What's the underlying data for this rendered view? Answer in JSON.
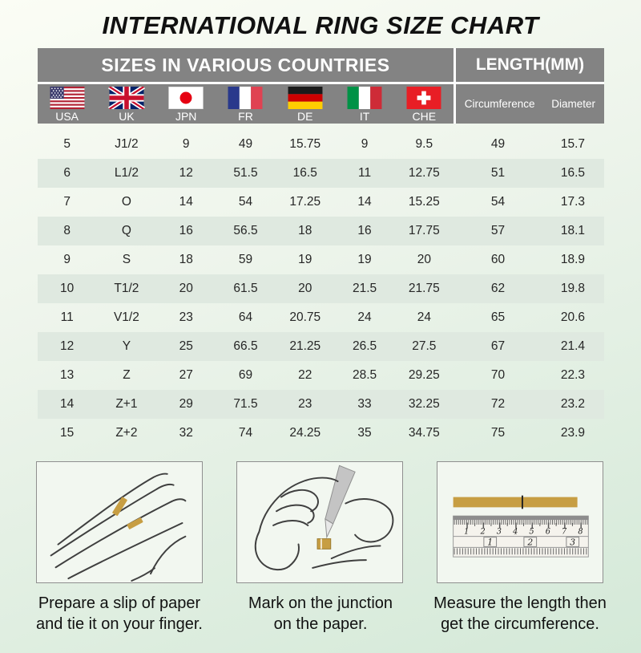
{
  "page_title": "INTERNATIONAL RING SIZE CHART",
  "table": {
    "left_header": "SIZES IN VARIOUS COUNTRIES",
    "right_header": "LENGTH(MM)",
    "countries": [
      {
        "code": "USA",
        "flag": "usa-flag-icon"
      },
      {
        "code": "UK",
        "flag": "uk-flag-icon"
      },
      {
        "code": "JPN",
        "flag": "japan-flag-icon"
      },
      {
        "code": "FR",
        "flag": "france-flag-icon"
      },
      {
        "code": "DE",
        "flag": "germany-flag-icon"
      },
      {
        "code": "IT",
        "flag": "italy-flag-icon"
      },
      {
        "code": "CHE",
        "flag": "switzerland-flag-icon"
      }
    ],
    "length_columns": [
      "Circumference",
      "Diameter"
    ]
  },
  "chart_data": {
    "type": "table",
    "title": "INTERNATIONAL RING SIZE CHART",
    "columns": [
      "USA",
      "UK",
      "JPN",
      "FR",
      "DE",
      "IT",
      "CHE",
      "Circumference",
      "Diameter"
    ],
    "rows": [
      [
        "5",
        "J1/2",
        "9",
        "49",
        "15.75",
        "9",
        "9.5",
        "49",
        "15.7"
      ],
      [
        "6",
        "L1/2",
        "12",
        "51.5",
        "16.5",
        "11",
        "12.75",
        "51",
        "16.5"
      ],
      [
        "7",
        "O",
        "14",
        "54",
        "17.25",
        "14",
        "15.25",
        "54",
        "17.3"
      ],
      [
        "8",
        "Q",
        "16",
        "56.5",
        "18",
        "16",
        "17.75",
        "57",
        "18.1"
      ],
      [
        "9",
        "S",
        "18",
        "59",
        "19",
        "19",
        "20",
        "60",
        "18.9"
      ],
      [
        "10",
        "T1/2",
        "20",
        "61.5",
        "20",
        "21.5",
        "21.75",
        "62",
        "19.8"
      ],
      [
        "11",
        "V1/2",
        "23",
        "64",
        "20.75",
        "24",
        "24",
        "65",
        "20.6"
      ],
      [
        "12",
        "Y",
        "25",
        "66.5",
        "21.25",
        "26.5",
        "27.5",
        "67",
        "21.4"
      ],
      [
        "13",
        "Z",
        "27",
        "69",
        "22",
        "28.5",
        "29.25",
        "70",
        "22.3"
      ],
      [
        "14",
        "Z+1",
        "29",
        "71.5",
        "23",
        "33",
        "32.25",
        "72",
        "23.2"
      ],
      [
        "15",
        "Z+2",
        "32",
        "74",
        "24.25",
        "35",
        "34.75",
        "75",
        "23.9"
      ]
    ]
  },
  "steps": [
    {
      "icon": "hand-with-paper-strip-icon",
      "line1": "Prepare a slip of paper",
      "line2": "and tie it on your finger."
    },
    {
      "icon": "hand-marking-pen-icon",
      "line1": "Mark on the junction",
      "line2": "on the paper."
    },
    {
      "icon": "ruler-icon",
      "line1": "Measure the length then",
      "line2": "get the circumference."
    }
  ],
  "ruler": {
    "cm_ticks": [
      "1",
      "2",
      "3",
      "4",
      "5",
      "6",
      "7",
      "8"
    ],
    "inch_ticks": [
      "1",
      "2",
      "3"
    ]
  },
  "colors": {
    "header_gray": "#838383",
    "row_alt_green": "#dfe9e0",
    "paper_strip_gold": "#c79e43",
    "background_top": "#fbfdf5",
    "background_bottom": "#d4e9d8"
  }
}
